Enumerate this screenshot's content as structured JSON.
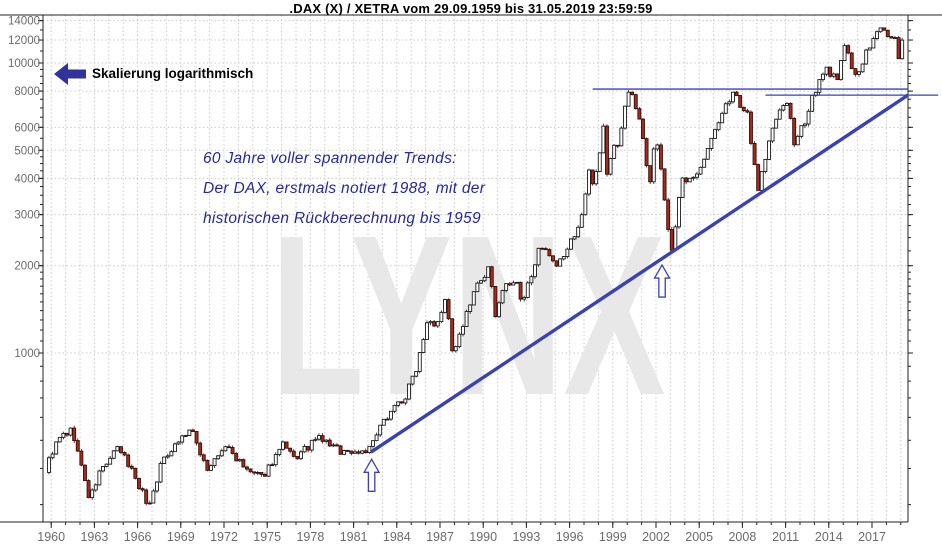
{
  "title": ".DAX (X) / XETRA vom 29.09.1959 bis 31.05.2019 23:59:59",
  "annotations": {
    "scaling_label": "Skalierung logarithmisch",
    "note_lines": [
      "60 Jahre voller spannender Trends:",
      "Der DAX, erstmals notiert 1988, mit der",
      "historischen Rückberechnung bis 1959"
    ],
    "watermark": "LYNX"
  },
  "colors": {
    "background": "#ffffff",
    "grid": "#c9c9c9",
    "axis_line": "#222222",
    "axis_text": "#6b6b6b",
    "candle_up_fill": "#ffffff",
    "candle_up_stroke": "#1a1a1a",
    "candle_down_fill": "#a12c20",
    "candle_down_stroke": "#3c0e08",
    "annotation_blue": "#3a41b4",
    "note_text": "#28289b",
    "arrow_icon": "#32329b",
    "watermark": "#e8e8e8",
    "title_text": "#000000"
  },
  "chart_data": {
    "type": "candlestick",
    "title": ".DAX (X) / XETRA vom 29.09.1959 bis 31.05.2019 23:59:59",
    "instrument": ".DAX (X) / XETRA",
    "period_start": "29.09.1959",
    "period_end": "31.05.2019 23:59:59",
    "y_scale": "logarithmic",
    "x_axis": {
      "range_years": [
        1959.44,
        2019.5
      ],
      "tick_years": [
        1960,
        1963,
        1966,
        1969,
        1972,
        1975,
        1978,
        1981,
        1984,
        1987,
        1990,
        1993,
        1996,
        1999,
        2002,
        2005,
        2008,
        2011,
        2014,
        2017
      ],
      "minor_tick_step_years": 1,
      "grid": true
    },
    "y_axis": {
      "range": [
        261,
        14640
      ],
      "tick_values": [
        1000,
        2000,
        3000,
        4000,
        5000,
        6000,
        8000,
        10000,
        12000,
        14000
      ],
      "grid": true
    },
    "candles_per_year": 4,
    "noise": {
      "seed": 9,
      "body": 0.032,
      "wick": 0.02
    },
    "series_anchors": [
      [
        1959.72,
        395
      ],
      [
        1960.3,
        470
      ],
      [
        1960.9,
        520
      ],
      [
        1961.6,
        540
      ],
      [
        1962.8,
        310
      ],
      [
        1963.5,
        390
      ],
      [
        1964.8,
        470
      ],
      [
        1965.8,
        390
      ],
      [
        1966.9,
        295
      ],
      [
        1967.8,
        420
      ],
      [
        1968.6,
        480
      ],
      [
        1969.8,
        545
      ],
      [
        1971.0,
        395
      ],
      [
        1972.3,
        480
      ],
      [
        1973.5,
        400
      ],
      [
        1974.7,
        370
      ],
      [
        1976.2,
        480
      ],
      [
        1977.0,
        430
      ],
      [
        1978.7,
        510
      ],
      [
        1980.2,
        460
      ],
      [
        1981.2,
        455
      ],
      [
        1982.2,
        465
      ],
      [
        1983.7,
        640
      ],
      [
        1984.7,
        700
      ],
      [
        1985.5,
        900
      ],
      [
        1986.3,
        1350
      ],
      [
        1986.8,
        1250
      ],
      [
        1987.6,
        1550
      ],
      [
        1988.0,
        960
      ],
      [
        1988.8,
        1280
      ],
      [
        1989.7,
        1700
      ],
      [
        1990.5,
        1940
      ],
      [
        1991.0,
        1340
      ],
      [
        1991.4,
        1650
      ],
      [
        1992.4,
        1780
      ],
      [
        1992.8,
        1450
      ],
      [
        1993.9,
        2230
      ],
      [
        1994.4,
        2240
      ],
      [
        1995.2,
        1950
      ],
      [
        1996.0,
        2300
      ],
      [
        1996.9,
        2850
      ],
      [
        1997.55,
        4400
      ],
      [
        1997.8,
        3750
      ],
      [
        1998.5,
        6100
      ],
      [
        1998.75,
        3950
      ],
      [
        1999.1,
        5100
      ],
      [
        1999.5,
        5300
      ],
      [
        2000.2,
        8060
      ],
      [
        2000.7,
        7200
      ],
      [
        2001.0,
        6300
      ],
      [
        2001.7,
        3900
      ],
      [
        2001.95,
        5150
      ],
      [
        2002.2,
        5300
      ],
      [
        2003.2,
        2230
      ],
      [
        2003.9,
        3900
      ],
      [
        2004.6,
        3900
      ],
      [
        2005.7,
        5000
      ],
      [
        2006.3,
        6000
      ],
      [
        2007.5,
        8080
      ],
      [
        2008.0,
        6800
      ],
      [
        2008.4,
        7050
      ],
      [
        2009.2,
        3680
      ],
      [
        2010.3,
        6200
      ],
      [
        2011.35,
        7520
      ],
      [
        2011.7,
        5050
      ],
      [
        2012.5,
        6400
      ],
      [
        2013.0,
        7750
      ],
      [
        2014.0,
        9550
      ],
      [
        2014.75,
        8600
      ],
      [
        2015.3,
        12350
      ],
      [
        2015.7,
        9700
      ],
      [
        2016.1,
        8760
      ],
      [
        2016.5,
        10200
      ],
      [
        2017.4,
        12600
      ],
      [
        2018.05,
        13450
      ],
      [
        2018.25,
        11900
      ],
      [
        2018.7,
        12450
      ],
      [
        2018.95,
        10350
      ],
      [
        2019.3,
        12300
      ],
      [
        2019.35,
        11900
      ]
    ],
    "trendline": {
      "from": [
        1982.2,
        455
      ],
      "to": [
        2019.5,
        7750
      ]
    },
    "resistance_lines": [
      {
        "value": 8130,
        "from_year": 1997.6,
        "to_year": 2019.5
      },
      {
        "value": 7750,
        "from_year": 2009.6,
        "to_year": 2021.6
      }
    ],
    "up_arrows": [
      {
        "year": 1982.25,
        "tip_value": 430
      },
      {
        "year": 2002.42,
        "tip_value": 2010
      }
    ]
  }
}
